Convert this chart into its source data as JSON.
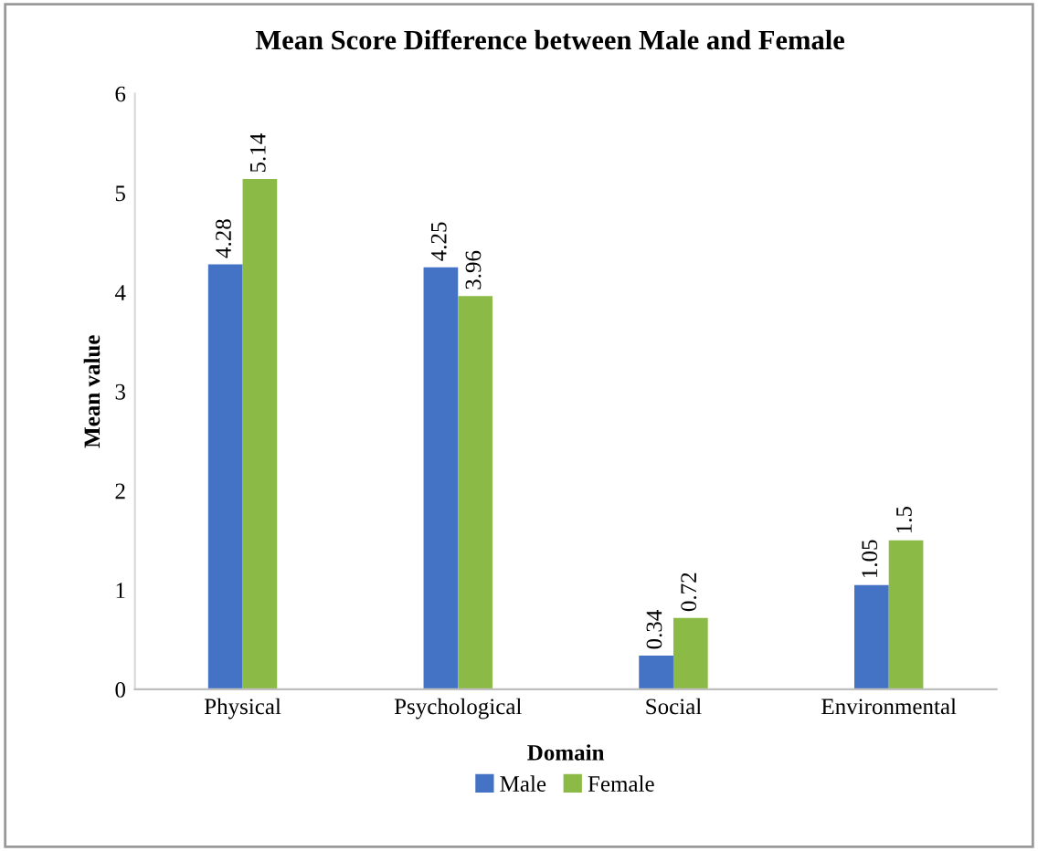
{
  "chart_data": {
    "type": "bar",
    "title": "Mean Score Difference between Male and Female",
    "xlabel": "Domain",
    "ylabel": "Mean value",
    "categories": [
      "Physical",
      "Psychological",
      "Social",
      "Environmental"
    ],
    "series": [
      {
        "name": "Male",
        "color": "#4472c4",
        "values": [
          4.28,
          4.25,
          0.34,
          1.05
        ]
      },
      {
        "name": "Female",
        "color": "#8cba46",
        "values": [
          5.14,
          3.96,
          0.72,
          1.5
        ]
      }
    ],
    "ylim": [
      0,
      6
    ],
    "yticks": [
      0,
      1,
      2,
      3,
      4,
      5,
      6
    ],
    "grid": false,
    "legend": "bottom",
    "data_labels": true
  }
}
